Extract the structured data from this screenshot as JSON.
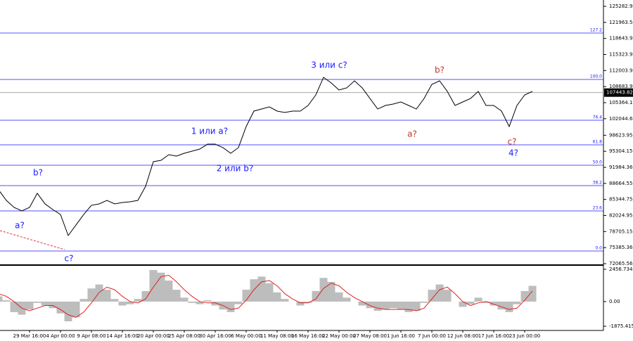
{
  "chart_data": [
    {
      "type": "line",
      "categories": [
        null,
        null,
        null,
        null,
        "29 Mar 16:00",
        null,
        null,
        null,
        "4 Apr 00:00",
        null,
        null,
        null,
        "9 Apr 08:00",
        null,
        null,
        null,
        "14 Apr 16:00",
        null,
        null,
        null,
        "20 Apr 00:00",
        null,
        null,
        null,
        "25 Apr 08:00",
        null,
        null,
        null,
        "30 Apr 16:00",
        null,
        null,
        null,
        "6 May 00:00",
        null,
        null,
        null,
        "11 May 08:00",
        null,
        null,
        null,
        "16 May 16:00",
        null,
        null,
        null,
        "22 May 00:00",
        null,
        null,
        null,
        "27 May 08:00",
        null,
        null,
        null,
        "1 Jun 16:00",
        null,
        null,
        null,
        "7 Jun 00:00",
        null,
        null,
        null,
        "12 Jun 08:00",
        null,
        null,
        null,
        "17 Jun 16:00",
        null,
        null,
        null,
        "23 Jun 00:00",
        null
      ],
      "series": [
        {
          "color": "#000000",
          "values": [
            87330,
            85150,
            83700,
            82970,
            83700,
            86610,
            84430,
            83260,
            82240,
            77880,
            80060,
            82240,
            84130,
            84430,
            85150,
            84430,
            84720,
            84860,
            85150,
            88060,
            93150,
            93440,
            94600,
            94310,
            94890,
            95330,
            95760,
            96780,
            96780,
            96060,
            94890,
            96060,
            100420,
            103620,
            104050,
            104490,
            103620,
            103330,
            103620,
            103620,
            104780,
            106960,
            110600,
            109430,
            107980,
            108420,
            109870,
            108420,
            106230,
            104050,
            104780,
            105070,
            105510,
            104780,
            104050,
            106230,
            109140,
            109870,
            107690,
            104780,
            105510,
            106230,
            107690,
            104780,
            104780,
            103620,
            100420,
            104780,
            106960,
            107690
          ]
        }
      ],
      "ylim": [
        71775,
        126591
      ],
      "yticks": [
        125282.95,
        121963.56,
        118643.95,
        115323.95,
        112003.95,
        108683.95,
        105364.15,
        102044.66,
        98623.95,
        95304.15,
        91984.36,
        88664.55,
        85344.75,
        82024.95,
        78705.15,
        75385.36,
        72065.56
      ],
      "levels": [
        {
          "label": "127.2",
          "value": 119757
        },
        {
          "label": "100.0",
          "value": 110161
        },
        {
          "label": "76.4",
          "value": 101728
        },
        {
          "label": "61.8",
          "value": 96638
        },
        {
          "label": "50.0",
          "value": 92422
        },
        {
          "label": "38.2",
          "value": 88205
        },
        {
          "label": "23.6",
          "value": 82971
        },
        {
          "label": "0.0",
          "value": 74683
        }
      ],
      "level_color": "#1a1aff",
      "last_price": 107443.82,
      "annotations": [
        {
          "text": "3 или c?",
          "color": "#1a1aff"
        },
        {
          "text": "b?",
          "color": "#c0392b"
        },
        {
          "text": "1 или a?",
          "color": "#1a1aff"
        },
        {
          "text": "2 или b?",
          "color": "#1a1aff"
        },
        {
          "text": "a?",
          "color": "#c0392b"
        },
        {
          "text": "c?",
          "color": "#c0392b"
        },
        {
          "text": "4?",
          "color": "#1a1aff"
        },
        {
          "text": "b?",
          "color": "#1a1aff"
        },
        {
          "text": "a?",
          "color": "#1a1aff"
        },
        {
          "text": "c?",
          "color": "#1a1aff"
        }
      ]
    },
    {
      "type": "bar",
      "series": [
        {
          "color": "#bdbdbd",
          "values": [
            400,
            100,
            -800,
            -1000,
            -600,
            -100,
            -300,
            -500,
            -900,
            -1500,
            -1200,
            200,
            1000,
            1300,
            900,
            200,
            -300,
            -200,
            200,
            800,
            2400,
            2200,
            1600,
            900,
            300,
            -100,
            -200,
            100,
            -300,
            -600,
            -800,
            -200,
            900,
            1700,
            1900,
            1400,
            700,
            200,
            0,
            -300,
            -100,
            800,
            1800,
            1500,
            700,
            300,
            0,
            -300,
            -500,
            -700,
            -600,
            -500,
            -600,
            -800,
            -700,
            -100,
            900,
            1300,
            900,
            0,
            -400,
            -200,
            300,
            -100,
            -300,
            -600,
            -800,
            -200,
            800,
            1200
          ]
        },
        {
          "color": "#e02020",
          "type": "line",
          "values": [
            600,
            400,
            0,
            -500,
            -700,
            -500,
            -300,
            -300,
            -600,
            -1000,
            -1200,
            -800,
            -100,
            700,
            1100,
            900,
            400,
            0,
            -100,
            200,
            1100,
            1900,
            2000,
            1500,
            900,
            400,
            0,
            -100,
            -100,
            -300,
            -600,
            -500,
            100,
            900,
            1500,
            1600,
            1200,
            600,
            200,
            -100,
            -100,
            200,
            1000,
            1400,
            1200,
            700,
            300,
            0,
            -300,
            -500,
            -600,
            -600,
            -600,
            -600,
            -700,
            -500,
            200,
            900,
            1100,
            600,
            0,
            -300,
            -100,
            0,
            -200,
            -400,
            -600,
            -500,
            100,
            800
          ]
        }
      ],
      "ylim": [
        -2196,
        2671
      ],
      "yticks": [
        2456.734,
        {
          "value": 0,
          "label": "0.00"
        },
        -1875.415
      ]
    }
  ]
}
